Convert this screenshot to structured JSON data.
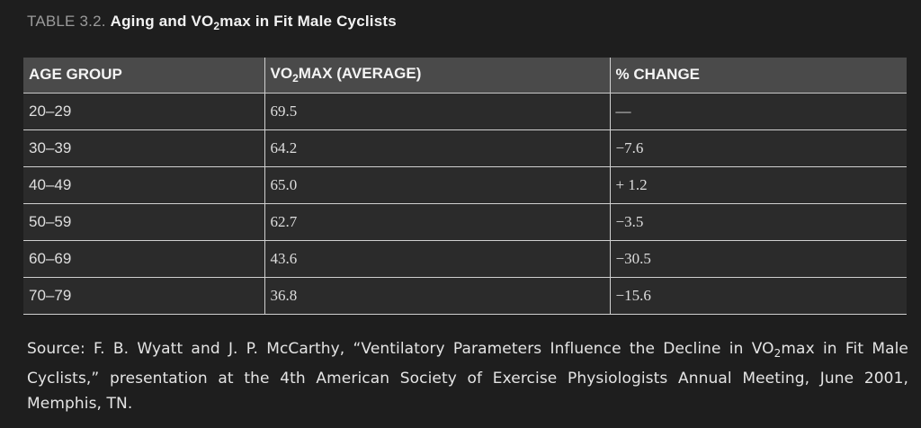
{
  "caption": {
    "label": "TABLE 3.2.",
    "title_pre": "Aging and VO",
    "title_sub": "2",
    "title_post": "max in Fit Male Cyclists"
  },
  "table": {
    "headers": {
      "age": "AGE GROUP",
      "vo2_pre": "VO",
      "vo2_sub": "2",
      "vo2_post": "MAX (AVERAGE)",
      "change": "% CHANGE"
    },
    "rows": [
      {
        "age": "20–29",
        "vo2": "69.5",
        "change": "—"
      },
      {
        "age": "30–39",
        "vo2": "64.2",
        "change": "−7.6"
      },
      {
        "age": "40–49",
        "vo2": "65.0",
        "change": "+ 1.2"
      },
      {
        "age": "50–59",
        "vo2": "62.7",
        "change": "−3.5"
      },
      {
        "age": "60–69",
        "vo2": "43.6",
        "change": "−30.5"
      },
      {
        "age": "70–79",
        "vo2": "36.8",
        "change": "−15.6"
      }
    ]
  },
  "source": {
    "pre": "Source: F. B. Wyatt and J. P. McCarthy, “Ventilatory Parameters Influence the Decline in VO",
    "sub": "2",
    "post": "max in Fit Male Cyclists,” presentation at the 4th American Society of Exercise Physiologists Annual Meeting, June 2001, Memphis, TN."
  }
}
